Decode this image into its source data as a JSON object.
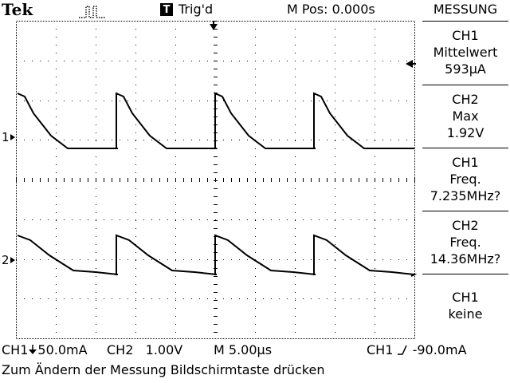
{
  "header": {
    "brand": "Tek",
    "trigger_badge": "T",
    "trigger_status": "Trig'd",
    "m_pos": "M Pos: 0.000s"
  },
  "menu": {
    "title": "MESSUNG",
    "items": [
      {
        "channel": "CH1",
        "type": "Mittelwert",
        "value": "593µA"
      },
      {
        "channel": "CH2",
        "type": "Max",
        "value": "1.92V"
      },
      {
        "channel": "CH1",
        "type": "Freq.",
        "value": "7.235MHz?"
      },
      {
        "channel": "CH2",
        "type": "Freq.",
        "value": "14.36MHz?"
      },
      {
        "channel": "CH1",
        "type": "keine",
        "value": ""
      }
    ]
  },
  "status_bar": {
    "ch1": "CH1",
    "ch1_scale": "50.0mA",
    "ch2": "CH2",
    "ch2_scale": "1.00V",
    "timebase": "M 5.00µs",
    "trigger_source": "CH1",
    "trigger_level": "-90.0mA"
  },
  "footer": {
    "hint": "Zum Ändern der Messung Bildschirmtaste drücken"
  },
  "markers": {
    "ch1": "1",
    "ch2": "2"
  },
  "colors": {
    "background": "#ffffff",
    "foreground": "#000000"
  },
  "icons": {
    "brand_pulse": "pulse-waveform-icon",
    "trigger_position": "down-arrow-icon",
    "trigger_level": "left-arrow-icon",
    "ch1_coupling": "ground-arrow-icon",
    "trigger_slope": "rising-edge-icon"
  }
}
